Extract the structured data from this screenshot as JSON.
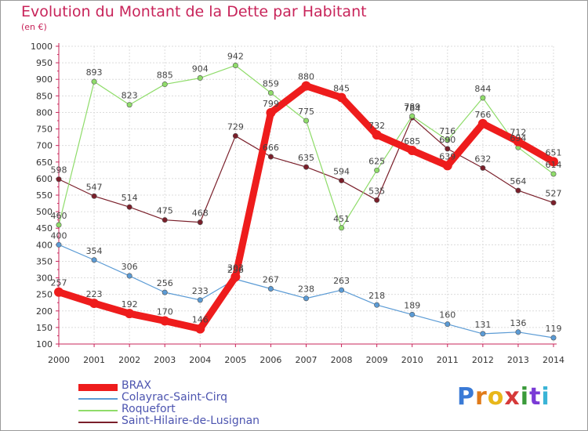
{
  "title": "Evolution du Montant de la Dette par Habitant",
  "subtitle": "(en €)",
  "logo": {
    "letters": [
      "P",
      "r",
      "o",
      "x",
      "i",
      "t",
      "i"
    ],
    "colors": [
      "#3a7ad6",
      "#e07b1a",
      "#e8b71a",
      "#d63a3a",
      "#3a9a3a",
      "#7a3ad6",
      "#3ab4d6"
    ]
  },
  "chart_data": {
    "type": "line",
    "x": [
      "2000",
      "2001",
      "2002",
      "2003",
      "2004",
      "2005",
      "2006",
      "2007",
      "2008",
      "2009",
      "2010",
      "2011",
      "2012",
      "2013",
      "2014"
    ],
    "ylim": [
      100,
      1000
    ],
    "yticks": [
      "100",
      "150",
      "200",
      "250",
      "300",
      "350",
      "400",
      "450",
      "500",
      "550",
      "600",
      "650",
      "700",
      "750",
      "800",
      "850",
      "900",
      "950",
      "1000"
    ],
    "grid": true,
    "legend_position": "bottom-left",
    "series": [
      {
        "name": "Saint-Hilaire-de-Lusignan",
        "color": "#7a1f2a",
        "values": [
          598,
          547,
          514,
          475,
          468,
          729,
          666,
          635,
          594,
          535,
          784,
          690,
          632,
          564,
          527
        ],
        "labels": [
          "598",
          "547",
          "514",
          "475",
          "468",
          "729",
          "666",
          "635",
          "594",
          "535",
          "784",
          "690",
          "632",
          "564",
          "527"
        ]
      },
      {
        "name": "Roquefort",
        "color": "#8fdc6a",
        "values": [
          460,
          893,
          823,
          885,
          904,
          942,
          859,
          775,
          451,
          625,
          789,
          716,
          844,
          694,
          614
        ],
        "labels": [
          "460",
          "893",
          "823",
          "885",
          "904",
          "942",
          "859",
          "775",
          "451",
          "625",
          "789",
          "716",
          "844",
          "694",
          "614"
        ]
      },
      {
        "name": "Colayrac-Saint-Cirq",
        "color": "#5b9bd5",
        "values": [
          400,
          354,
          306,
          256,
          233,
          296,
          267,
          238,
          263,
          218,
          189,
          160,
          131,
          136,
          119
        ],
        "labels": [
          "400",
          "354",
          "306",
          "256",
          "233",
          "296",
          "267",
          "238",
          "263",
          "218",
          "189",
          "160",
          "131",
          "136",
          "119"
        ]
      },
      {
        "name": "BRAX",
        "color": "#ee1c1c",
        "values": [
          257,
          223,
          192,
          170,
          146,
          303,
          799,
          880,
          845,
          732,
          685,
          639,
          766,
          712,
          651
        ],
        "labels": [
          "257",
          "223",
          "192",
          "170",
          "146",
          "303",
          "799",
          "880",
          "845",
          "732",
          "685",
          "639",
          "766",
          "712",
          "651"
        ]
      }
    ],
    "legend_order": [
      "BRAX",
      "Colayrac-Saint-Cirq",
      "Roquefort",
      "Saint-Hilaire-de-Lusignan"
    ]
  }
}
